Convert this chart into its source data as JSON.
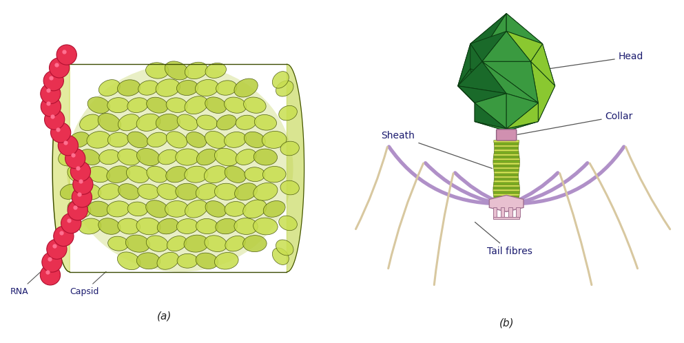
{
  "background_color": "#ffffff",
  "label_color": "#1a1a6e",
  "line_color": "#555555",
  "tmv": {
    "capsomere_fill": "#c8de50",
    "capsomere_fill2": "#b8ce40",
    "capsomere_edge": "#3a4a00",
    "rna_color": "#e83050",
    "rna_outline": "#b01030",
    "rna_highlight": "#ff7090",
    "label_rna": "RNA",
    "label_capsid": "Capsid",
    "label_a": "(a)"
  },
  "phage": {
    "head_dark": "#1a6a2a",
    "head_mid": "#3a9a40",
    "head_light": "#8ac830",
    "head_edge": "#0a3a10",
    "collar_color": "#d090b0",
    "collar_edge": "#906080",
    "sheath_dark": "#7ab020",
    "sheath_light": "#cce050",
    "sheath_edge": "#4a6010",
    "baseplate_fill": "#e8c0d0",
    "baseplate_edge": "#a07090",
    "leg_color": "#b090c8",
    "leg_edge": "#806098",
    "fiber_fill": "#d8c8a0",
    "fiber_edge": "#a09070",
    "label_head": "Head",
    "label_collar": "Collar",
    "label_sheath": "Sheath",
    "label_tail": "Tail fibres",
    "label_b": "(b)"
  }
}
